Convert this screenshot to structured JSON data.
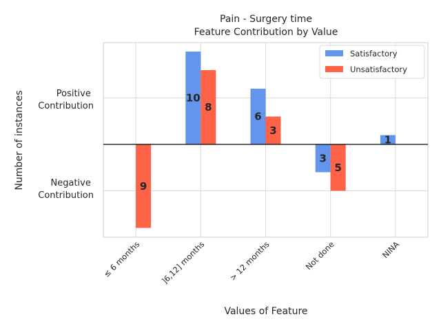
{
  "chart_data": {
    "type": "bar",
    "title_line1": "Pain - Surgery time",
    "title_line2": "Feature Contribution by Value",
    "xlabel": "Values of Feature",
    "ylabel": "Number of instances",
    "ytick_positive": [
      "Positive",
      "Contribution"
    ],
    "ytick_negative": [
      "Negative",
      "Contribution"
    ],
    "categories": [
      "≤ 6 months",
      "]6,12] months",
      "> 12 months",
      "Not done",
      "NINA"
    ],
    "series": [
      {
        "name": "Satisfactory",
        "color": "#6495ED",
        "values": [
          0,
          10,
          6,
          -3,
          1
        ]
      },
      {
        "name": "Unsatisfactory",
        "color": "#FF6347",
        "values": [
          -9,
          8,
          3,
          -5,
          0
        ]
      }
    ],
    "ylim": [
      -10,
      10.2
    ],
    "grid": true,
    "legend_position": "top-right"
  }
}
